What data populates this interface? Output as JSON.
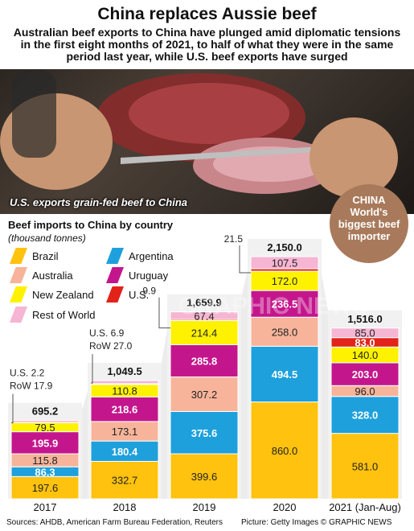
{
  "header": {
    "title": "China replaces Aussie beef",
    "subtitle": "Australian beef exports to China have plunged amid diplomatic tensions in the first eight months of 2021, to half of what they were in the same period last year, while U.S. beef exports have surged"
  },
  "photo": {
    "caption": "U.S. exports grain-fed beef to China"
  },
  "badge": {
    "line1": "CHINA",
    "line2": "World's",
    "line3": "biggest beef",
    "line4": "importer"
  },
  "chart_data": {
    "type": "bar",
    "stacked": true,
    "title": "Beef imports to China by country",
    "units": "(thousand tonnes)",
    "categories": [
      "2017",
      "2018",
      "2019",
      "2020",
      "2021 (Jan-Aug)"
    ],
    "totals": [
      "695.2",
      "1,049.5",
      "1,659.9",
      "2,150.0",
      "1,516.0"
    ],
    "series": [
      {
        "name": "Brazil",
        "color": "#ffc20e",
        "values": [
          197.6,
          332.7,
          399.6,
          860.0,
          581.0
        ]
      },
      {
        "name": "Argentina",
        "color": "#1ea0dc",
        "values": [
          86.3,
          180.4,
          375.6,
          494.5,
          328.0
        ]
      },
      {
        "name": "Australia",
        "color": "#f7b49a",
        "values": [
          115.8,
          173.1,
          307.2,
          258.0,
          96.0
        ]
      },
      {
        "name": "Uruguay",
        "color": "#c4168c",
        "values": [
          195.9,
          218.6,
          285.8,
          236.5,
          203.0
        ]
      },
      {
        "name": "New Zealand",
        "color": "#fff200",
        "values": [
          79.5,
          110.8,
          214.4,
          172.0,
          140.0
        ]
      },
      {
        "name": "U.S.",
        "color": "#e2231a",
        "values": [
          2.2,
          6.9,
          9.9,
          21.5,
          83.0
        ]
      },
      {
        "name": "Rest of World",
        "color": "#f6b5d2",
        "values": [
          17.9,
          27.0,
          67.4,
          107.5,
          85.0
        ]
      }
    ],
    "callouts": [
      {
        "bar": 0,
        "us_label": "U.S.",
        "us_value": "2.2",
        "row_label": "RoW",
        "row_value": "17.9"
      },
      {
        "bar": 1,
        "us_label": "U.S.",
        "us_value": "6.9",
        "row_label": "RoW",
        "row_value": "27.0"
      },
      {
        "bar": 2,
        "us_value": "9.9"
      },
      {
        "bar": 3,
        "us_value": "21.5"
      }
    ],
    "legend_order": [
      "Brazil",
      "Argentina",
      "Australia",
      "Uruguay",
      "New Zealand",
      "U.S.",
      "Rest of World"
    ]
  },
  "watermark": "GRAPHIC NEWS",
  "footer": {
    "sources": "Sources: AHDB, American Farm Bureau Federation, Reuters",
    "credit": "Picture: Getty Images   © GRAPHIC NEWS"
  }
}
